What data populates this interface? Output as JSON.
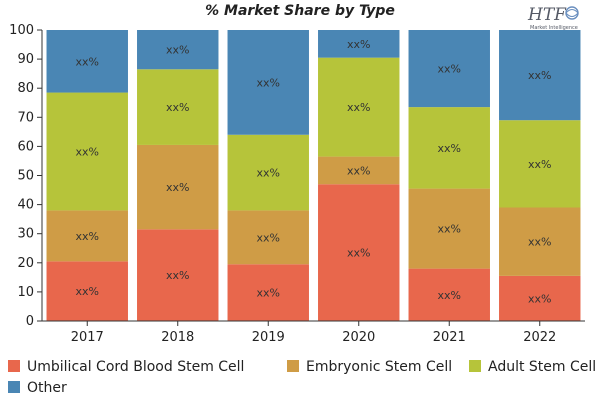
{
  "chart_data": {
    "type": "bar",
    "stacked": true,
    "title": "% Market Share by Type",
    "xlabel": "",
    "ylabel": "",
    "ylim": [
      0,
      100
    ],
    "yticks": [
      0,
      10,
      20,
      30,
      40,
      50,
      60,
      70,
      80,
      90,
      100
    ],
    "grid": false,
    "legend_position": "bottom",
    "categories": [
      "2017",
      "2018",
      "2019",
      "2020",
      "2021",
      "2022"
    ],
    "data_label_text": "xx%",
    "series": [
      {
        "name": "Umbilical Cord Blood Stem Cell",
        "color": "#e8674c",
        "values": [
          20.5,
          31.5,
          19.5,
          47,
          18,
          15.5
        ]
      },
      {
        "name": "Embryonic Stem Cell",
        "color": "#cf9c46",
        "values": [
          17.5,
          29,
          18.5,
          9.5,
          27.5,
          23.5
        ]
      },
      {
        "name": "Adult Stem Cell",
        "color": "#b6c43a",
        "values": [
          40.5,
          26,
          26,
          34,
          28,
          30
        ]
      },
      {
        "name": "Other",
        "color": "#4a86b4",
        "values": [
          21.5,
          13.5,
          36,
          9.5,
          26.5,
          31
        ]
      }
    ]
  },
  "logo": {
    "text": "HTF",
    "subtext": "Market Intelligence"
  }
}
